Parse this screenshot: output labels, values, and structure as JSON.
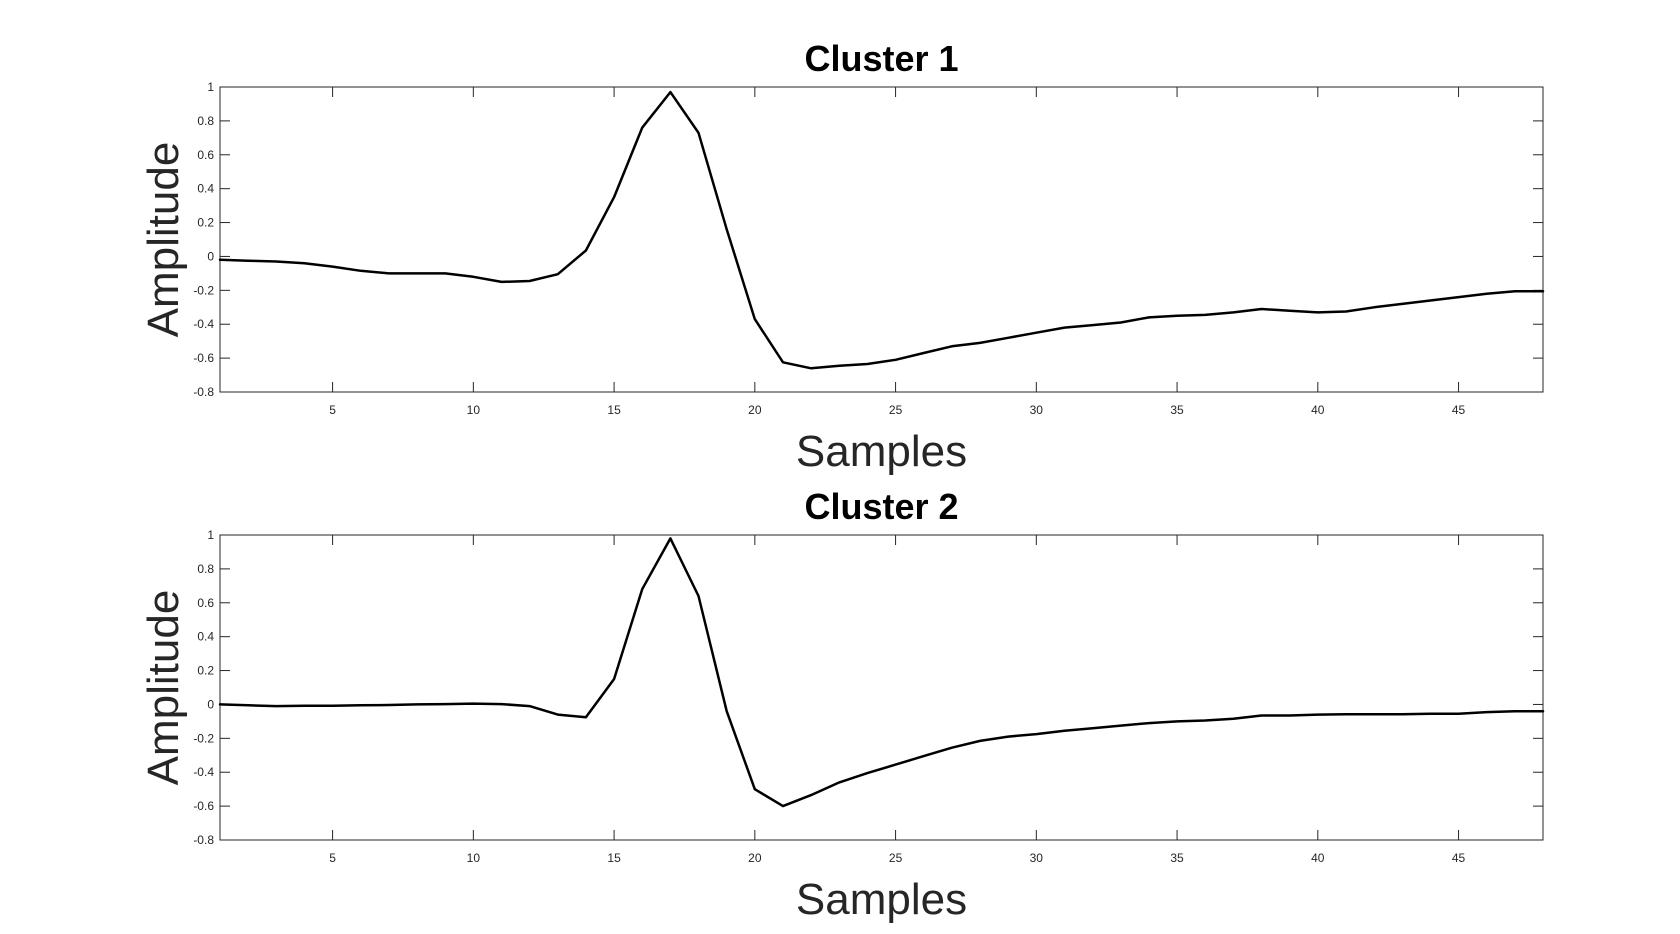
{
  "chart_data": [
    {
      "type": "line",
      "title": "Cluster 1",
      "xlabel": "Samples",
      "ylabel": "Amplitude",
      "xlim": [
        1,
        48
      ],
      "ylim": [
        -0.8,
        1
      ],
      "xticks": [
        5,
        10,
        15,
        20,
        25,
        30,
        35,
        40,
        45
      ],
      "yticks": [
        -0.8,
        -0.6,
        -0.4,
        -0.2,
        0,
        0.2,
        0.4,
        0.6,
        0.8,
        1
      ],
      "line_color": "#000000",
      "series": [
        {
          "x": [
            1,
            2,
            3,
            4,
            5,
            6,
            7,
            8,
            9,
            10,
            11,
            12,
            13,
            14,
            15,
            16,
            17,
            18,
            19,
            20,
            21,
            22,
            23,
            24,
            25,
            26,
            27,
            28,
            29,
            30,
            31,
            32,
            33,
            34,
            35,
            36,
            37,
            38,
            39,
            40,
            41,
            42,
            43,
            44,
            45,
            46,
            47,
            48
          ],
          "values": [
            -0.02,
            -0.025,
            -0.03,
            -0.04,
            -0.06,
            -0.085,
            -0.1,
            -0.1,
            -0.1,
            -0.12,
            -0.15,
            -0.145,
            -0.105,
            0.035,
            0.35,
            0.76,
            0.97,
            0.73,
            0.16,
            -0.37,
            -0.625,
            -0.66,
            -0.645,
            -0.635,
            -0.61,
            -0.57,
            -0.53,
            -0.51,
            -0.48,
            -0.45,
            -0.42,
            -0.405,
            -0.39,
            -0.36,
            -0.35,
            -0.345,
            -0.33,
            -0.31,
            -0.32,
            -0.33,
            -0.325,
            -0.3,
            -0.28,
            -0.26,
            -0.24,
            -0.22,
            -0.205,
            -0.205
          ]
        }
      ]
    },
    {
      "type": "line",
      "title": "Cluster 2",
      "xlabel": "Samples",
      "ylabel": "Amplitude",
      "xlim": [
        1,
        48
      ],
      "ylim": [
        -0.8,
        1
      ],
      "xticks": [
        5,
        10,
        15,
        20,
        25,
        30,
        35,
        40,
        45
      ],
      "yticks": [
        -0.8,
        -0.6,
        -0.4,
        -0.2,
        0,
        0.2,
        0.4,
        0.6,
        0.8,
        1
      ],
      "line_color": "#000000",
      "series": [
        {
          "x": [
            1,
            2,
            3,
            4,
            5,
            6,
            7,
            8,
            9,
            10,
            11,
            12,
            13,
            14,
            15,
            16,
            17,
            18,
            19,
            20,
            21,
            22,
            23,
            24,
            25,
            26,
            27,
            28,
            29,
            30,
            31,
            32,
            33,
            34,
            35,
            36,
            37,
            38,
            39,
            40,
            41,
            42,
            43,
            44,
            45,
            46,
            47,
            48
          ],
          "values": [
            0,
            -0.005,
            -0.01,
            -0.008,
            -0.008,
            -0.005,
            -0.003,
            0,
            0.002,
            0.005,
            0.002,
            -0.01,
            -0.06,
            -0.075,
            0.15,
            0.68,
            0.98,
            0.64,
            -0.04,
            -0.5,
            -0.6,
            -0.535,
            -0.46,
            -0.405,
            -0.355,
            -0.305,
            -0.255,
            -0.215,
            -0.19,
            -0.175,
            -0.155,
            -0.14,
            -0.125,
            -0.11,
            -0.1,
            -0.095,
            -0.085,
            -0.065,
            -0.065,
            -0.06,
            -0.058,
            -0.058,
            -0.058,
            -0.055,
            -0.055,
            -0.045,
            -0.04,
            -0.04
          ]
        }
      ]
    }
  ]
}
